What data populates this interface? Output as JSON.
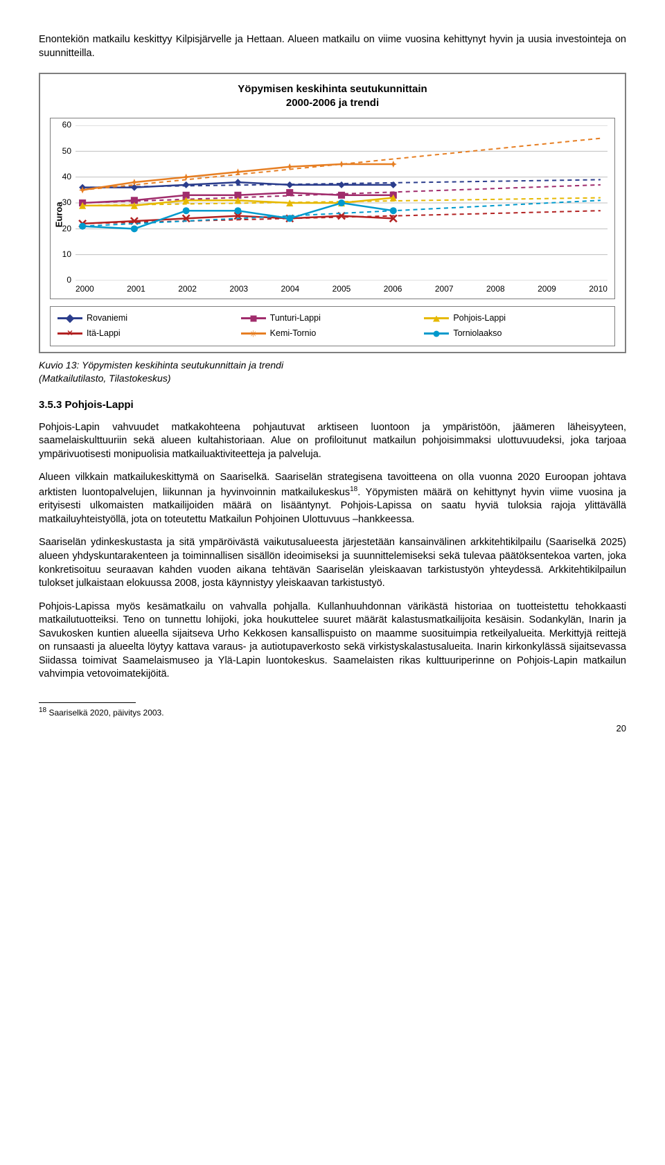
{
  "intro_paragraph": "Enontekiön matkailu keskittyy Kilpisjärvelle ja Hettaan. Alueen matkailu on viime vuosina kehittynyt hyvin ja uusia investointeja on suunnitteilla.",
  "chart": {
    "type": "line",
    "title": "Yöpymisen keskihinta seutukunnittain\n2000-2006 ja trendi",
    "ylabel": "Euroa",
    "ylim": [
      0,
      60
    ],
    "ytick_step": 10,
    "years": [
      "2000",
      "2001",
      "2002",
      "2003",
      "2004",
      "2005",
      "2006",
      "2007",
      "2008",
      "2009",
      "2010"
    ],
    "grid_color": "#bfbfbf",
    "border_color": "#7f7f7f",
    "series": [
      {
        "name": "Rovaniemi",
        "color": "#2b3d8c",
        "marker": "diamond",
        "dash": false,
        "values": [
          36,
          36,
          37,
          38,
          37,
          37,
          37,
          null,
          null,
          null,
          null
        ],
        "trend": [
          36,
          36.3,
          36.6,
          36.9,
          37.2,
          37.5,
          37.8,
          38.1,
          38.4,
          38.7,
          39
        ]
      },
      {
        "name": "Tunturi-Lappi",
        "color": "#a02c6c",
        "marker": "square",
        "dash": false,
        "values": [
          30,
          31,
          33,
          33,
          34,
          33,
          33,
          null,
          null,
          null,
          null
        ],
        "trend": [
          30,
          30.7,
          31.4,
          32.1,
          32.8,
          33.5,
          34.2,
          34.9,
          35.6,
          36.3,
          37
        ]
      },
      {
        "name": "Pohjois-Lappi",
        "color": "#e6b800",
        "marker": "triangle",
        "dash": false,
        "values": [
          29,
          29,
          31,
          31,
          30,
          30,
          32,
          null,
          null,
          null,
          null
        ],
        "trend": [
          29,
          29.3,
          29.6,
          29.9,
          30.2,
          30.5,
          30.8,
          31.1,
          31.4,
          31.7,
          32
        ]
      },
      {
        "name": "Itä-Lappi",
        "color": "#b22222",
        "marker": "x",
        "dash": false,
        "values": [
          22,
          23,
          24,
          25,
          24,
          25,
          24,
          null,
          null,
          null,
          null
        ],
        "trend": [
          22,
          22.5,
          23,
          23.5,
          24,
          24.5,
          25,
          25.5,
          26,
          26.5,
          27
        ]
      },
      {
        "name": "Kemi-Tornio",
        "color": "#e67e22",
        "marker": "star",
        "dash": false,
        "values": [
          35,
          38,
          40,
          42,
          44,
          45,
          45,
          null,
          null,
          null,
          null
        ],
        "trend": [
          35,
          37,
          39,
          41,
          43,
          45,
          47,
          49,
          51,
          53,
          55
        ]
      },
      {
        "name": "Torniolaakso",
        "color": "#0099cc",
        "marker": "circle",
        "dash": false,
        "values": [
          21,
          20,
          27,
          27,
          24,
          30,
          27,
          null,
          null,
          null,
          null
        ],
        "trend": [
          21,
          22,
          23,
          24,
          25,
          26,
          27,
          28,
          29,
          30,
          31
        ]
      }
    ]
  },
  "caption": "Kuvio 13: Yöpymisten keskihinta seutukunnittain ja trendi\n(Matkailutilasto, Tilastokeskus)",
  "section_heading": "3.5.3 Pohjois-Lappi",
  "p1a": "Pohjois-Lapin vahvuudet matkakohteena pohjautuvat arktiseen luontoon ja ympäristöön, jäämeren läheisyyteen, saamelaiskulttuuriin sekä alueen kultahistoriaan. Alue on profiloitunut matkailun pohjoisimmaksi ulottuvuudeksi, joka tarjoaa ympärivuotisesti monipuolisia matkailuaktiviteetteja ja palveluja.",
  "p2a": "Alueen vilkkain matkailukeskittymä on Saariselkä. Saariselän strategisena tavoitteena on olla vuonna 2020 Euroopan johtava arktisten luontopalvelujen, liikunnan ja hyvinvoinnin matkailukeskus",
  "p2_fnref": "18",
  "p2b": ". Yöpymisten määrä on kehittynyt hyvin viime vuosina ja erityisesti ulkomaisten matkailijoiden määrä on lisääntynyt. Pohjois-Lapissa on saatu hyviä tuloksia rajoja ylittävällä matkailuyhteistyöllä, jota on toteutettu Matkailun Pohjoinen Ulottuvuus –hankkeessa.",
  "p3": "Saariselän ydinkeskustasta ja sitä ympäröivästä vaikutusalueesta järjestetään kansainvälinen arkkitehtikilpailu (Saariselkä 2025) alueen yhdyskuntarakenteen ja toiminnallisen sisällön ideoimiseksi ja suunnittelemiseksi sekä tulevaa päätöksentekoa varten, joka konkretisoituu seuraavan kahden vuoden aikana tehtävän Saariselän yleiskaavan tarkistustyön yhteydessä. Arkkitehtikilpailun tulokset julkaistaan elokuussa 2008, josta käynnistyy yleiskaavan tarkistustyö.",
  "p4": "Pohjois-Lapissa myös kesämatkailu on vahvalla pohjalla. Kullanhuuhdonnan värikästä historiaa on tuotteistettu tehokkaasti matkailutuotteiksi. Teno on tunnettu lohijoki, joka houkuttelee suuret määrät kalastusmatkailijoita kesäisin. Sodankylän, Inarin ja Savukosken kuntien alueella sijaitseva Urho Kekkosen kansallispuisto on maamme suosituimpia retkeilyalueita. Merkittyjä reittejä on runsaasti ja alueelta löytyy kattava varaus- ja autiotupaverkosto sekä virkistyskalastusalueita. Inarin kirkonkylässä sijaitsevassa Siidassa toimivat Saamelaismuseo ja Ylä-Lapin luontokeskus. Saamelaisten rikas kulttuuriperinne on Pohjois-Lapin matkailun vahvimpia vetovoimatekijöitä.",
  "footnote_num": "18",
  "footnote_text": " Saariselkä 2020, päivitys 2003.",
  "page_number": "20"
}
